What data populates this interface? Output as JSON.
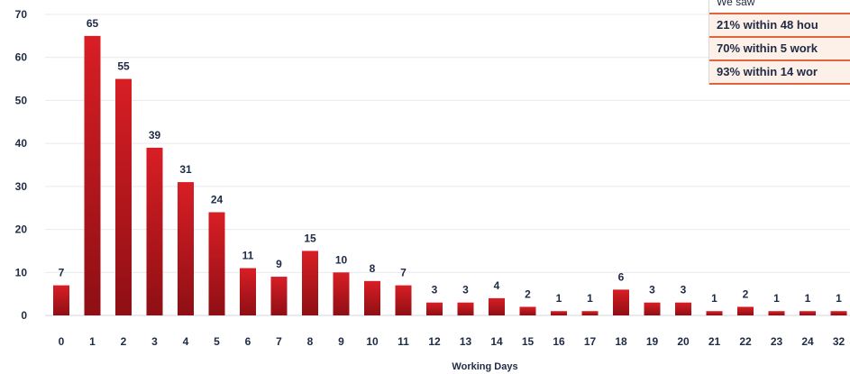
{
  "chart_data": {
    "type": "bar",
    "categories": [
      "0",
      "1",
      "2",
      "3",
      "4",
      "5",
      "6",
      "7",
      "8",
      "9",
      "10",
      "11",
      "12",
      "13",
      "14",
      "15",
      "16",
      "17",
      "18",
      "19",
      "20",
      "21",
      "22",
      "23",
      "24",
      "32"
    ],
    "values": [
      7,
      65,
      55,
      39,
      31,
      24,
      11,
      9,
      15,
      10,
      8,
      7,
      3,
      3,
      4,
      2,
      1,
      1,
      6,
      3,
      3,
      1,
      2,
      1,
      1,
      1
    ],
    "title": "",
    "xlabel": "Working Days",
    "ylabel": "",
    "ylim": [
      0,
      70
    ],
    "yticks": [
      0,
      10,
      20,
      30,
      40,
      50,
      60,
      70
    ],
    "grid": true,
    "bar_color": "#c8161d",
    "bar_color_dark": "#8e0f14"
  },
  "info_box": {
    "heading": "We saw",
    "rows": [
      "21% within 48 hou",
      "70% within 5 work",
      "93% within 14 wor"
    ]
  }
}
